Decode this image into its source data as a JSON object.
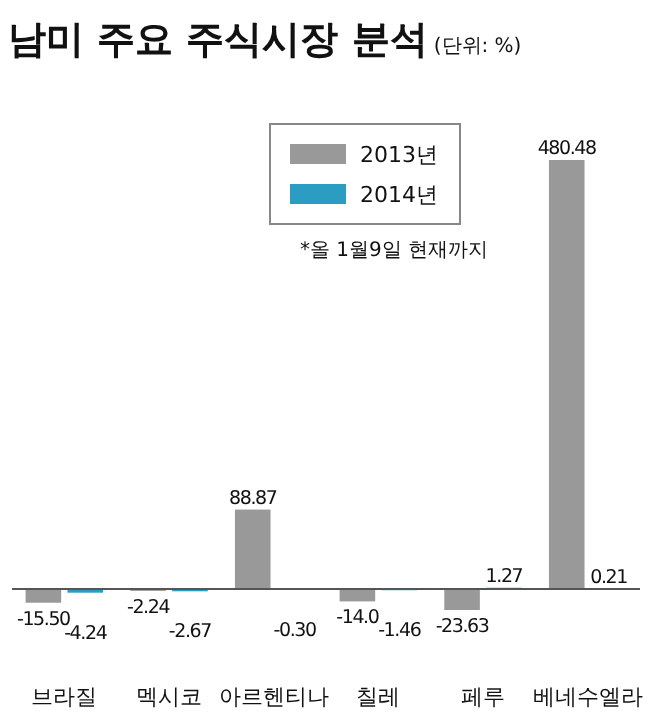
{
  "chart_data": {
    "type": "bar",
    "title": "남미 주요 주식시장 분석",
    "subtitle": "(단위: %)",
    "categories": [
      "브라질",
      "멕시코",
      "아르헨티나",
      "칠레",
      "페루",
      "베네수엘라"
    ],
    "series": [
      {
        "name": "2013년",
        "color": "#999999",
        "values": [
          -15.5,
          -2.24,
          88.87,
          -14.0,
          -23.63,
          480.48
        ],
        "value_labels": [
          "-15.50",
          "-2.24",
          "88.87",
          "-14.0",
          "-23.63",
          "480.48"
        ]
      },
      {
        "name": "2014년",
        "color": "#2b9cc2",
        "values": [
          -4.24,
          -2.67,
          -0.3,
          -1.46,
          1.27,
          0.21
        ],
        "value_labels": [
          "-4.24",
          "-2.67",
          "-0.30",
          "-1.46",
          "1.27",
          "0.21"
        ]
      }
    ],
    "legend": "top",
    "annotations": [
      "*올 1월9일 현재까지"
    ]
  }
}
